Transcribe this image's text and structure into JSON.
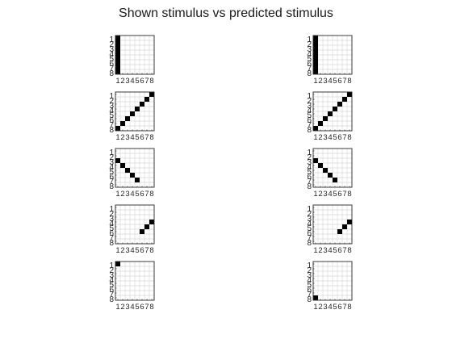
{
  "title": "Shown stimulus vs predicted stimulus",
  "tick_labels": [
    "1",
    "2",
    "3",
    "4",
    "5",
    "6",
    "7",
    "8"
  ],
  "colors": {
    "filled": "#000000",
    "grid": "#d9d9d9",
    "frame": "#262626",
    "text": "#262626",
    "background": "#ffffff"
  },
  "chart_data": {
    "type": "heatmap",
    "grid_size": [
      8,
      8
    ],
    "x_ticks": [
      1,
      2,
      3,
      4,
      5,
      6,
      7,
      8
    ],
    "y_ticks": [
      1,
      2,
      3,
      4,
      5,
      6,
      7,
      8
    ],
    "y_direction": "reversed",
    "grid": true,
    "columns": [
      "shown",
      "predicted"
    ],
    "rows": [
      {
        "shown": [
          [
            1,
            1
          ],
          [
            1,
            2
          ],
          [
            1,
            3
          ],
          [
            1,
            4
          ],
          [
            1,
            5
          ],
          [
            1,
            6
          ],
          [
            1,
            7
          ],
          [
            1,
            8
          ]
        ],
        "predicted": [
          [
            1,
            1
          ],
          [
            1,
            2
          ],
          [
            1,
            3
          ],
          [
            1,
            4
          ],
          [
            1,
            5
          ],
          [
            1,
            6
          ],
          [
            1,
            7
          ],
          [
            1,
            8
          ]
        ]
      },
      {
        "shown": [
          [
            1,
            8
          ],
          [
            2,
            7
          ],
          [
            3,
            6
          ],
          [
            4,
            5
          ],
          [
            5,
            4
          ],
          [
            6,
            3
          ],
          [
            7,
            2
          ],
          [
            8,
            1
          ]
        ],
        "predicted": [
          [
            1,
            8
          ],
          [
            2,
            7
          ],
          [
            3,
            6
          ],
          [
            4,
            5
          ],
          [
            5,
            4
          ],
          [
            6,
            3
          ],
          [
            7,
            2
          ],
          [
            8,
            1
          ]
        ]
      },
      {
        "shown": [
          [
            1,
            3
          ],
          [
            2,
            4
          ],
          [
            3,
            5
          ],
          [
            4,
            6
          ],
          [
            5,
            7
          ]
        ],
        "predicted": [
          [
            1,
            3
          ],
          [
            2,
            4
          ],
          [
            3,
            5
          ],
          [
            4,
            6
          ],
          [
            5,
            7
          ]
        ]
      },
      {
        "shown": [
          [
            6,
            6
          ],
          [
            7,
            5
          ],
          [
            8,
            4
          ]
        ],
        "predicted": [
          [
            6,
            6
          ],
          [
            7,
            5
          ],
          [
            8,
            4
          ]
        ]
      },
      {
        "shown": [
          [
            1,
            1
          ]
        ],
        "predicted": [
          [
            1,
            8
          ]
        ]
      }
    ]
  }
}
